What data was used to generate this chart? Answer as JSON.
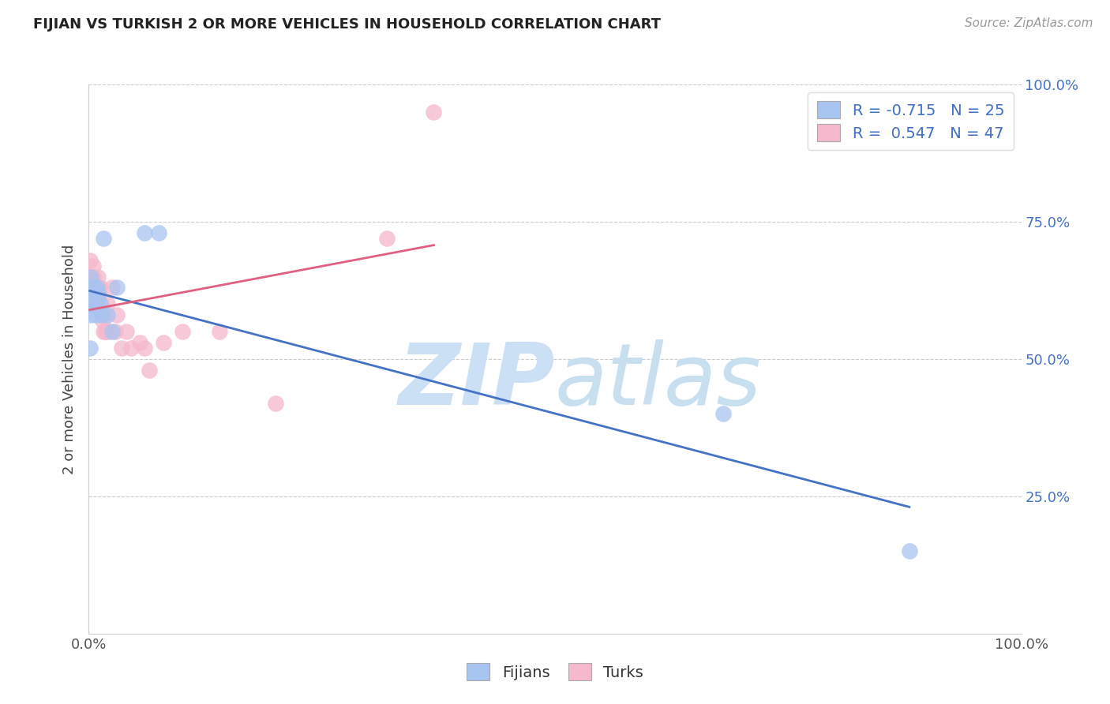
{
  "title": "FIJIAN VS TURKISH 2 OR MORE VEHICLES IN HOUSEHOLD CORRELATION CHART",
  "source": "Source: ZipAtlas.com",
  "ylabel": "2 or more Vehicles in Household",
  "watermark_zip": "ZIP",
  "watermark_atlas": "atlas",
  "fijian_R": -0.715,
  "fijian_N": 25,
  "turkish_R": 0.547,
  "turkish_N": 47,
  "fijian_color": "#a8c4f0",
  "turkish_color": "#f5b8cc",
  "fijian_line_color": "#4472c4",
  "turkish_line_color": "#e06080",
  "xlim": [
    0.0,
    1.0
  ],
  "ylim": [
    0.0,
    1.0
  ],
  "ytick_positions": [
    0.25,
    0.5,
    0.75,
    1.0
  ],
  "ytick_labels": [
    "25.0%",
    "50.0%",
    "75.0%",
    "100.0%"
  ],
  "background_color": "#ffffff",
  "grid_color": "#cccccc",
  "title_color": "#222222",
  "source_color": "#999999",
  "watermark_color": "#cce0f5",
  "right_tick_color": "#4472c4",
  "fijian_x": [
    0.001,
    0.001,
    0.001,
    0.002,
    0.003,
    0.004,
    0.005,
    0.005,
    0.006,
    0.007,
    0.007,
    0.008,
    0.009,
    0.01,
    0.01,
    0.012,
    0.014,
    0.016,
    0.02,
    0.025,
    0.03,
    0.06,
    0.075,
    0.68,
    0.88
  ],
  "fijian_y": [
    0.62,
    0.58,
    0.52,
    0.65,
    0.63,
    0.6,
    0.63,
    0.61,
    0.62,
    0.6,
    0.58,
    0.6,
    0.63,
    0.62,
    0.61,
    0.6,
    0.58,
    0.72,
    0.58,
    0.55,
    0.63,
    0.73,
    0.73,
    0.4,
    0.15
  ],
  "turkish_x": [
    0.001,
    0.001,
    0.001,
    0.001,
    0.002,
    0.002,
    0.003,
    0.003,
    0.004,
    0.004,
    0.005,
    0.005,
    0.005,
    0.006,
    0.007,
    0.007,
    0.008,
    0.008,
    0.009,
    0.01,
    0.01,
    0.01,
    0.011,
    0.012,
    0.013,
    0.014,
    0.015,
    0.016,
    0.017,
    0.018,
    0.02,
    0.022,
    0.025,
    0.028,
    0.03,
    0.035,
    0.04,
    0.045,
    0.055,
    0.06,
    0.065,
    0.08,
    0.1,
    0.14,
    0.2,
    0.32,
    0.37
  ],
  "turkish_y": [
    0.68,
    0.65,
    0.63,
    0.6,
    0.65,
    0.62,
    0.65,
    0.63,
    0.63,
    0.6,
    0.67,
    0.65,
    0.63,
    0.62,
    0.63,
    0.6,
    0.63,
    0.62,
    0.6,
    0.65,
    0.63,
    0.62,
    0.62,
    0.63,
    0.6,
    0.58,
    0.57,
    0.55,
    0.55,
    0.55,
    0.6,
    0.55,
    0.63,
    0.55,
    0.58,
    0.52,
    0.55,
    0.52,
    0.53,
    0.52,
    0.48,
    0.53,
    0.55,
    0.55,
    0.42,
    0.72,
    0.95
  ]
}
